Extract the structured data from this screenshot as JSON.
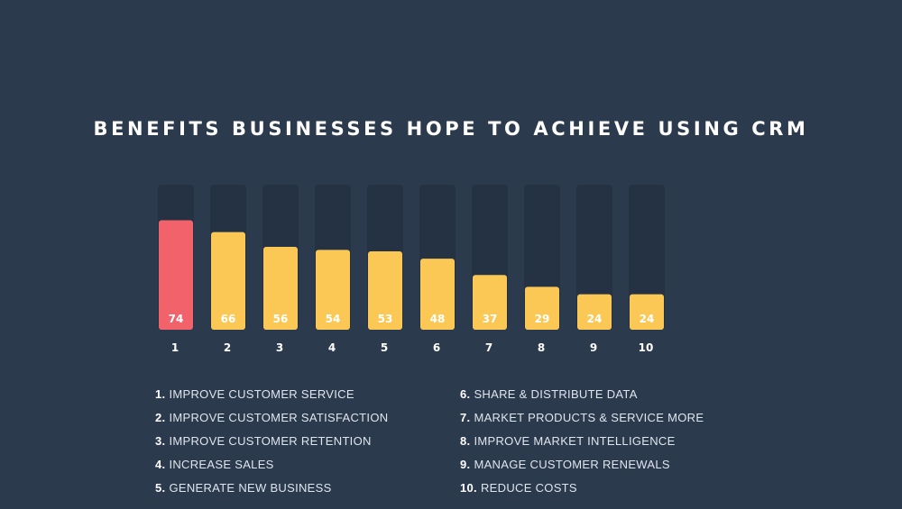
{
  "title": "BENEFITS BUSINESSES HOPE TO ACHIEVE USING CRM",
  "colors": {
    "background": "#2c3a4d",
    "track": "#243243",
    "highlight": "#f2626a",
    "bar": "#fbc855"
  },
  "chart_data": {
    "type": "bar",
    "title": "BENEFITS BUSINESSES HOPE TO ACHIEVE USING CRM",
    "categories": [
      "1",
      "2",
      "3",
      "4",
      "5",
      "6",
      "7",
      "8",
      "9",
      "10"
    ],
    "values": [
      74,
      66,
      56,
      54,
      53,
      48,
      37,
      29,
      24,
      24
    ],
    "highlight_index": 0,
    "ylim": [
      0,
      100
    ],
    "grid": false,
    "legend": [
      "IMPROVE CUSTOMER SERVICE",
      "IMPROVE CUSTOMER SATISFACTION",
      "IMPROVE CUSTOMER RETENTION",
      "INCREASE SALES",
      "GENERATE NEW BUSINESS",
      "SHARE & DISTRIBUTE DATA",
      "MARKET PRODUCTS & SERVICE MORE",
      "IMPROVE MARKET INTELLIGENCE",
      "MANAGE CUSTOMER RENEWALS",
      "REDUCE COSTS"
    ]
  },
  "legend_items": [
    {
      "num": "1.",
      "text": "IMPROVE CUSTOMER SERVICE"
    },
    {
      "num": "2.",
      "text": "IMPROVE CUSTOMER SATISFACTION"
    },
    {
      "num": "3.",
      "text": "IMPROVE CUSTOMER RETENTION"
    },
    {
      "num": "4.",
      "text": "INCREASE SALES"
    },
    {
      "num": "5.",
      "text": "GENERATE NEW BUSINESS"
    },
    {
      "num": "6.",
      "text": "SHARE & DISTRIBUTE DATA"
    },
    {
      "num": "7.",
      "text": "MARKET PRODUCTS & SERVICE MORE"
    },
    {
      "num": "8.",
      "text": "IMPROVE MARKET INTELLIGENCE"
    },
    {
      "num": "9.",
      "text": "MANAGE CUSTOMER RENEWALS"
    },
    {
      "num": "10.",
      "text": "REDUCE COSTS"
    }
  ]
}
